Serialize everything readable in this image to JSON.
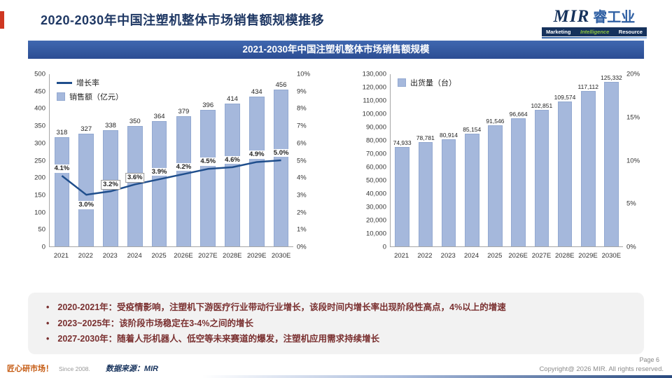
{
  "slide": {
    "title": "2020-2030年中国注塑机整体市场销售额规模推移",
    "banner": "2021-2030年中国注塑机整体市场销售额规模"
  },
  "logo": {
    "name": "MIR",
    "cn": "睿工业",
    "tagline": [
      "Marketing",
      "Intelligence",
      "Resource"
    ]
  },
  "colors": {
    "bar": "#a5b8dc",
    "bar_border": "#93a9d1",
    "line": "#1f4e8c",
    "navy": "#1f3864",
    "notes_text": "#7a3030"
  },
  "chart_data": [
    {
      "id": "sales",
      "type": "bar",
      "title": "2021-2030年中国注塑机整体市场销售额规模",
      "categories": [
        "2021",
        "2022",
        "2023",
        "2024",
        "2025",
        "2026E",
        "2027E",
        "2028E",
        "2029E",
        "2030E"
      ],
      "series": [
        {
          "name": "销售额（亿元）",
          "kind": "bar",
          "axis": "left",
          "values": [
            318,
            327,
            338,
            350,
            364,
            379,
            396,
            414,
            434,
            456
          ],
          "labels": [
            "318",
            "327",
            "338",
            "350",
            "364",
            "379",
            "396",
            "414",
            "434",
            "456"
          ]
        },
        {
          "name": "增长率",
          "kind": "line",
          "axis": "right",
          "values": [
            4.1,
            3.0,
            3.2,
            3.6,
            3.9,
            4.2,
            4.5,
            4.6,
            4.9,
            5.0
          ],
          "labels": [
            "4.1%",
            "3.0%",
            "3.2%",
            "3.6%",
            "3.9%",
            "4.2%",
            "4.5%",
            "4.6%",
            "4.9%",
            "5.0%"
          ]
        }
      ],
      "left_axis": {
        "min": 0,
        "max": 500,
        "step": 50,
        "ticks": [
          "500",
          "450",
          "400",
          "350",
          "300",
          "250",
          "200",
          "150",
          "100",
          "50",
          "0"
        ]
      },
      "right_axis": {
        "min": 0,
        "max": 10,
        "step": 1,
        "suffix": "%",
        "ticks": [
          "10%",
          "9%",
          "8%",
          "7%",
          "6%",
          "5%",
          "4%",
          "3%",
          "2%",
          "1%",
          "0%"
        ]
      },
      "legend": [
        {
          "swatch": "line",
          "label": "增长率"
        },
        {
          "swatch": "bar",
          "label": "销售额（亿元）"
        }
      ],
      "legend_position": "top-left",
      "grid": false
    },
    {
      "id": "shipments",
      "type": "bar",
      "title": "",
      "categories": [
        "2021",
        "2022",
        "2023",
        "2024",
        "2025",
        "2026E",
        "2027E",
        "2028E",
        "2029E",
        "2030E"
      ],
      "series": [
        {
          "name": "出货量（台）",
          "kind": "bar",
          "axis": "left",
          "values": [
            74933,
            78781,
            80914,
            85154,
            91546,
            96664,
            102851,
            109574,
            117112,
            125332
          ],
          "labels": [
            "74,933",
            "78,781",
            "80,914",
            "85,154",
            "91,546",
            "96,664",
            "102,851",
            "109,574",
            "117,112",
            "125,332"
          ]
        }
      ],
      "left_axis": {
        "min": 0,
        "max": 130000,
        "step": 10000,
        "ticks": [
          "130,000",
          "120,000",
          "110,000",
          "100,000",
          "90,000",
          "80,000",
          "70,000",
          "60,000",
          "50,000",
          "40,000",
          "30,000",
          "20,000",
          "10,000",
          "0"
        ]
      },
      "right_axis": {
        "min": 0,
        "max": 20,
        "step": 5,
        "suffix": "%",
        "ticks": [
          "20%",
          "15%",
          "10%",
          "5%",
          "0%"
        ]
      },
      "legend": [
        {
          "swatch": "bar",
          "label": "出货量（台）"
        }
      ],
      "legend_position": "top-left",
      "grid": false
    }
  ],
  "notes": {
    "bullets": [
      "2020-2021年：受疫情影响，注塑机下游医疗行业带动行业增长，该段时间内增长率出现阶段性高点，4%以上的增速",
      "2023~2025年：该阶段市场稳定在3-4%之间的增长",
      "2027-2030年：随着人形机器人、低空等未来赛道的爆发，注塑机应用需求持续增长"
    ]
  },
  "footer": {
    "slogan": "匠心研市场！",
    "since": "Since 2008.",
    "source": "数据来源：MIR",
    "page": "Page 6",
    "copyright": "Copyright@ 2026 MIR. All rights reserved."
  }
}
